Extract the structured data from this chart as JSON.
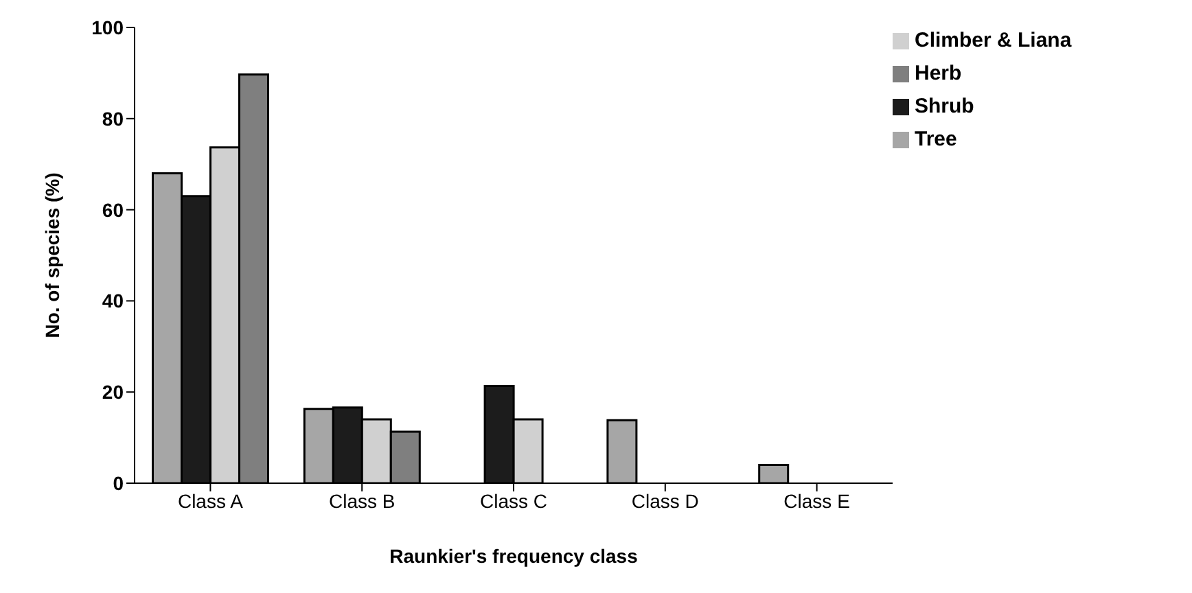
{
  "chart_data": {
    "type": "bar",
    "xlabel": "Raunkier's frequency class",
    "ylabel": "No. of species (%)",
    "categories": [
      "Class A",
      "Class B",
      "Class C",
      "Class D",
      "Class E"
    ],
    "series": [
      {
        "name": "Tree",
        "color": "#a6a6a6",
        "values": [
          68,
          16.3,
          0,
          13.8,
          4
        ]
      },
      {
        "name": "Shrub",
        "color": "#1c1c1c",
        "values": [
          63,
          16.6,
          21.3,
          0,
          0
        ]
      },
      {
        "name": "Climber & Liana",
        "color": "#d0d0d0",
        "values": [
          73.7,
          14,
          14,
          0,
          0
        ]
      },
      {
        "name": "Herb",
        "color": "#7f7f7f",
        "values": [
          89.7,
          11.3,
          0,
          0,
          0
        ]
      }
    ],
    "ylim": [
      0,
      100
    ],
    "yticks": [
      0,
      20,
      40,
      60,
      80,
      100
    ],
    "grid": false,
    "legend": "top right"
  }
}
